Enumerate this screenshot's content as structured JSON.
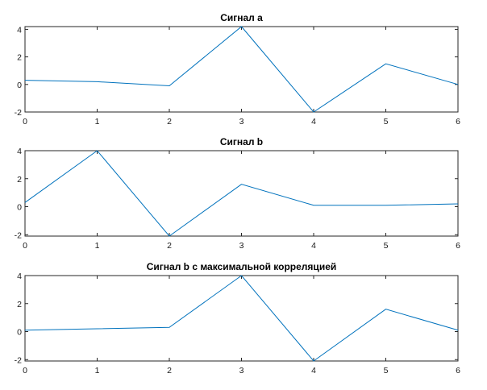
{
  "chart_data": [
    {
      "type": "line",
      "title": "Сигнал a",
      "x": [
        0,
        1,
        2,
        3,
        4,
        5,
        6
      ],
      "xlim": [
        0,
        6
      ],
      "ylim": [
        -2,
        4.2
      ],
      "xticks": [
        "0",
        "1",
        "2",
        "3",
        "4",
        "5",
        "6"
      ],
      "yticks": [
        "-2",
        "0",
        "2",
        "4"
      ],
      "grid": false,
      "series": [
        {
          "values": [
            0.3,
            0.2,
            -0.1,
            4.2,
            -2.0,
            1.5,
            0.0
          ],
          "color": "#0072BD"
        }
      ]
    },
    {
      "type": "line",
      "title": "Сигнал b",
      "x": [
        0,
        1,
        2,
        3,
        4,
        5,
        6
      ],
      "xlim": [
        0,
        6
      ],
      "ylim": [
        -2.1,
        4.0
      ],
      "xticks": [
        "0",
        "1",
        "2",
        "3",
        "4",
        "5",
        "6"
      ],
      "yticks": [
        "-2",
        "0",
        "2",
        "4"
      ],
      "grid": false,
      "series": [
        {
          "values": [
            0.3,
            4.0,
            -2.1,
            1.6,
            0.1,
            0.1,
            0.2
          ],
          "color": "#0072BD"
        }
      ]
    },
    {
      "type": "line",
      "title": "Сигнал b с максимальной корреляцией",
      "x": [
        0,
        1,
        2,
        3,
        4,
        5,
        6
      ],
      "xlim": [
        0,
        6
      ],
      "ylim": [
        -2.1,
        4.0
      ],
      "xticks": [
        "0",
        "1",
        "2",
        "3",
        "4",
        "5",
        "6"
      ],
      "yticks": [
        "-2",
        "0",
        "2",
        "4"
      ],
      "grid": false,
      "series": [
        {
          "values": [
            0.1,
            0.2,
            0.3,
            4.0,
            -2.1,
            1.6,
            0.1
          ],
          "color": "#0072BD"
        }
      ]
    }
  ]
}
